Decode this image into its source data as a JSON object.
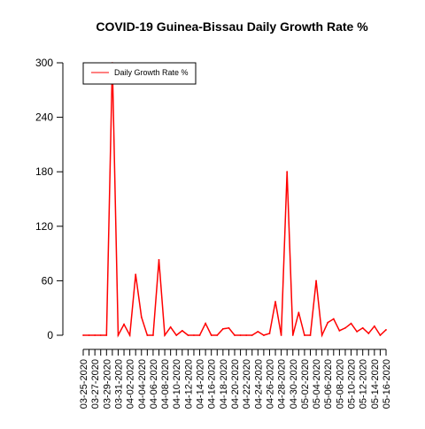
{
  "chart_data": {
    "type": "line",
    "title": "COVID-19 Guinea-Bissau Daily Growth Rate %",
    "xlabel": "",
    "ylabel": "",
    "ylim": [
      0,
      300
    ],
    "yticks": [
      0,
      60,
      120,
      180,
      240,
      300
    ],
    "grid": false,
    "legend_position": "top-left",
    "x": [
      "03-25-2020",
      "03-26-2020",
      "03-27-2020",
      "03-28-2020",
      "03-29-2020",
      "03-30-2020",
      "03-31-2020",
      "04-01-2020",
      "04-02-2020",
      "04-03-2020",
      "04-04-2020",
      "04-05-2020",
      "04-06-2020",
      "04-07-2020",
      "04-08-2020",
      "04-09-2020",
      "04-10-2020",
      "04-11-2020",
      "04-12-2020",
      "04-13-2020",
      "04-14-2020",
      "04-15-2020",
      "04-16-2020",
      "04-17-2020",
      "04-18-2020",
      "04-19-2020",
      "04-20-2020",
      "04-21-2020",
      "04-22-2020",
      "04-23-2020",
      "04-24-2020",
      "04-25-2020",
      "04-26-2020",
      "04-27-2020",
      "04-28-2020",
      "04-29-2020",
      "04-30-2020",
      "05-01-2020",
      "05-02-2020",
      "05-03-2020",
      "05-04-2020",
      "05-05-2020",
      "05-06-2020",
      "05-07-2020",
      "05-08-2020",
      "05-09-2020",
      "05-10-2020",
      "05-11-2020",
      "05-12-2020",
      "05-13-2020",
      "05-14-2020",
      "05-15-2020",
      "05-16-2020"
    ],
    "xticks": [
      "03-25-2020",
      "03-27-2020",
      "03-29-2020",
      "03-31-2020",
      "04-02-2020",
      "04-04-2020",
      "04-06-2020",
      "04-08-2020",
      "04-10-2020",
      "04-12-2020",
      "04-14-2020",
      "04-16-2020",
      "04-18-2020",
      "04-20-2020",
      "04-22-2020",
      "04-24-2020",
      "04-26-2020",
      "04-28-2020",
      "04-30-2020",
      "05-02-2020",
      "05-04-2020",
      "05-06-2020",
      "05-08-2020",
      "05-10-2020",
      "05-12-2020",
      "05-14-2020",
      "05-16-2020"
    ],
    "series": [
      {
        "name": "Daily Growth Rate %",
        "color": "#ff0000",
        "values": [
          0,
          0,
          0,
          0,
          0,
          300,
          0,
          12,
          0,
          67,
          20,
          0,
          0,
          83,
          0,
          9,
          0,
          5,
          0,
          0,
          0,
          13,
          0,
          0,
          7,
          8,
          0,
          0,
          0,
          0,
          4,
          0,
          2,
          37,
          0,
          180,
          0,
          25,
          0,
          0,
          60,
          0,
          14,
          18,
          5,
          8,
          13,
          4,
          8,
          2,
          10,
          0,
          6
        ]
      }
    ]
  }
}
